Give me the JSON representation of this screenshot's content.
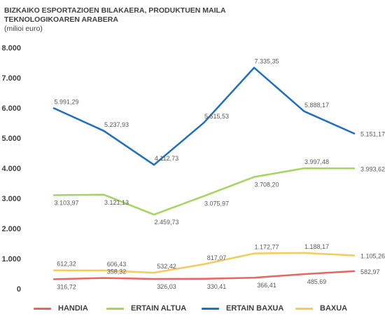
{
  "chart_data": {
    "type": "line",
    "title_lines": [
      "BIZKAIKO ESPORTAZIOEN BILAKAERA, PRODUKTUEN MAILA",
      "TEKNOLOGIKOAREN ARABERA"
    ],
    "subtitle": "(milioi euro)",
    "xlabel": "",
    "ylabel": "",
    "categories": [
      "",
      "",
      "",
      "",
      "",
      "",
      ""
    ],
    "ylim": [
      0,
      8000
    ],
    "yticks": [
      0,
      1000,
      2000,
      3000,
      4000,
      5000,
      6000,
      7000,
      8000
    ],
    "ytick_labels": [
      "0",
      "1.000",
      "2.000",
      "3.000",
      "4.000",
      "5.000",
      "6.000",
      "7.000",
      "8.000"
    ],
    "grid": false,
    "legend_position": "bottom",
    "series": [
      {
        "name": "HANDIA",
        "color": "#e8665f",
        "values": [
          316.72,
          358.32,
          326.03,
          330.41,
          366.41,
          485.69,
          582.97
        ],
        "labels": [
          "316,72",
          "358,32",
          "326,03",
          "330,41",
          "366,41",
          "485,69",
          "582,97"
        ]
      },
      {
        "name": "ERTAIN ALTUA",
        "color": "#a4d65e",
        "values": [
          3103.97,
          3121.13,
          2459.73,
          3075.97,
          3708.2,
          3997.48,
          3993.62
        ],
        "labels": [
          "3.103,97",
          "3.121,13",
          "2.459,73",
          "3.075,97",
          "3.708,20",
          "3.997,48",
          "3.993,62"
        ]
      },
      {
        "name": "ERTAIN BAXUA",
        "color": "#1f6fbf",
        "values": [
          5991.29,
          5237.93,
          4112.73,
          5515.53,
          7335.35,
          5888.17,
          5151.17
        ],
        "labels": [
          "5.991,29",
          "5.237,93",
          "4.112,73",
          "5.515,53",
          "7.335,35",
          "5.888,17",
          "5.151,17"
        ]
      },
      {
        "name": "BAXUA",
        "color": "#f6cb5e",
        "values": [
          612.32,
          606.43,
          532.42,
          817.07,
          1172.77,
          1188.17,
          1105.26
        ],
        "labels": [
          "612,32",
          "606,43",
          "532,42",
          "817,07",
          "1.172,77",
          "1.188,17",
          "1.105,26"
        ]
      }
    ]
  }
}
